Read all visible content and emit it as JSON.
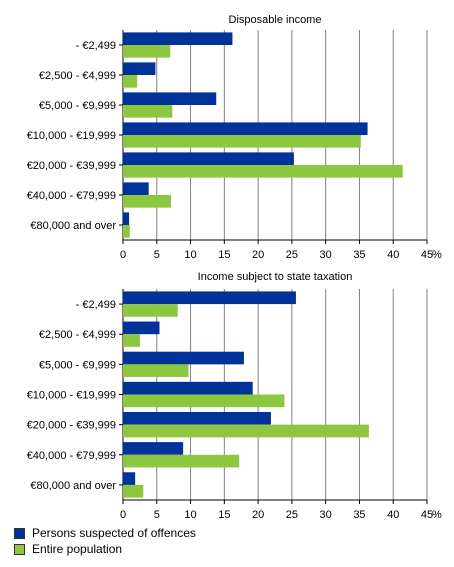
{
  "chart_data": [
    {
      "type": "bar",
      "orientation": "horizontal",
      "title": "Disposable income",
      "categories": [
        "- €2,499",
        "€2,500 - €4,999",
        "€5,000 - €9,999",
        "€10,000 - €19,999",
        "€20,000 - €39,999",
        "€40,000 - €79,999",
        "€80,000 and over"
      ],
      "series": [
        {
          "name": "Persons suspected of offences",
          "values": [
            16.2,
            4.8,
            13.8,
            36.2,
            25.3,
            3.8,
            0.9
          ],
          "color": "#003399"
        },
        {
          "name": "Entire population",
          "values": [
            7.0,
            2.1,
            7.3,
            35.2,
            41.4,
            7.1,
            1.0
          ],
          "color": "#8dc63f"
        }
      ],
      "xlim": [
        0,
        45
      ],
      "xticks": [
        "0",
        "5",
        "10",
        "15",
        "20",
        "25",
        "30",
        "35",
        "40",
        "45"
      ],
      "unit": "%",
      "grid": "vertical"
    },
    {
      "type": "bar",
      "orientation": "horizontal",
      "title": "Income subject to state taxation",
      "categories": [
        "- €2,499",
        "€2,500 - €4,999",
        "€5,000 - €9,999",
        "€10,000 - €19,999",
        "€20,000 - €39,999",
        "€40,000 - €79,999",
        "€80,000 and over"
      ],
      "series": [
        {
          "name": "Persons suspected of offences",
          "values": [
            25.6,
            5.4,
            17.9,
            19.2,
            21.9,
            8.9,
            1.8
          ],
          "color": "#003399"
        },
        {
          "name": "Entire population",
          "values": [
            8.1,
            2.5,
            9.7,
            23.9,
            36.4,
            17.2,
            3.0
          ],
          "color": "#8dc63f"
        }
      ],
      "xlim": [
        0,
        45
      ],
      "xticks": [
        "0",
        "5",
        "10",
        "15",
        "20",
        "25",
        "30",
        "35",
        "40",
        "45"
      ],
      "unit": "%",
      "grid": "vertical"
    }
  ],
  "legend": {
    "items": [
      {
        "label": "Persons suspected of offences",
        "color": "#003399"
      },
      {
        "label": "Entire population",
        "color": "#8dc63f"
      }
    ]
  }
}
